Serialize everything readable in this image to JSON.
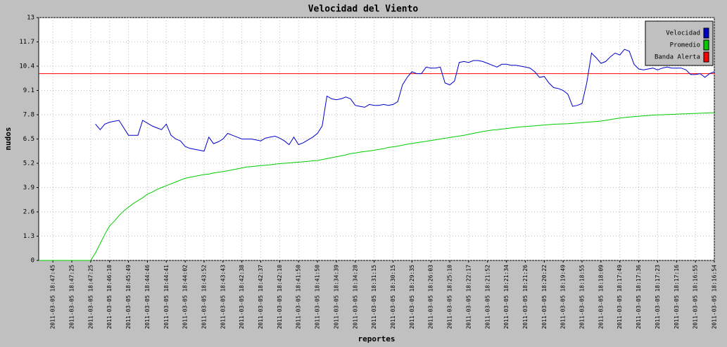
{
  "chart_data": {
    "type": "line",
    "title": "Velocidad del Viento",
    "xlabel": "reportes",
    "ylabel": "nudos",
    "categories": [
      null,
      null,
      null,
      "2011-03-05 18:47:45",
      null,
      null,
      null,
      "2011-03-05 18:47:25",
      null,
      null,
      null,
      "2011-03-05 18:47:25",
      null,
      null,
      null,
      "2011-03-05 18:46:10",
      null,
      null,
      null,
      "2011-03-05 18:45:49",
      null,
      null,
      null,
      "2011-03-05 18:44:46",
      null,
      null,
      null,
      "2011-03-05 18:44:41",
      null,
      null,
      null,
      "2011-03-05 18:44:02",
      null,
      null,
      null,
      "2011-03-05 18:43:52",
      null,
      null,
      null,
      "2011-03-05 18:43:43",
      null,
      null,
      null,
      "2011-03-05 18:42:38",
      null,
      null,
      null,
      "2011-03-05 18:42:37",
      null,
      null,
      null,
      "2011-03-05 18:42:10",
      null,
      null,
      null,
      "2011-03-05 18:41:50",
      null,
      null,
      null,
      "2011-03-05 18:41:50",
      null,
      null,
      null,
      "2011-03-05 18:34:39",
      null,
      null,
      null,
      "2011-03-05 18:34:28",
      null,
      null,
      null,
      "2011-03-05 18:31:15",
      null,
      null,
      null,
      "2011-03-05 18:30:15",
      null,
      null,
      null,
      "2011-03-05 18:29:35",
      null,
      null,
      null,
      "2011-03-05 18:26:03",
      null,
      null,
      null,
      "2011-03-05 18:25:10",
      null,
      null,
      null,
      "2011-03-05 18:22:17",
      null,
      null,
      null,
      "2011-03-05 18:21:52",
      null,
      null,
      null,
      "2011-03-05 18:21:34",
      null,
      null,
      null,
      "2011-03-05 18:21:26",
      null,
      null,
      null,
      "2011-03-05 18:20:22",
      null,
      null,
      null,
      "2011-03-05 18:19:49",
      null,
      null,
      null,
      "2011-03-05 18:18:55",
      null,
      null,
      null,
      "2011-03-05 18:18:09",
      null,
      null,
      null,
      "2011-03-05 18:17:49",
      null,
      null,
      null,
      "2011-03-05 18:17:36",
      null,
      null,
      null,
      "2011-03-05 18:17:23",
      null,
      null,
      null,
      "2011-03-05 18:17:16",
      null,
      null,
      null,
      "2011-03-05 18:16:55",
      null,
      null,
      null,
      "2011-03-05 18:16:54"
    ],
    "series": [
      {
        "name": "Velocidad",
        "color": "#0000cc",
        "values": [
          null,
          null,
          null,
          null,
          null,
          null,
          null,
          null,
          null,
          null,
          null,
          null,
          7.3,
          7.0,
          7.3,
          7.4,
          7.45,
          7.5,
          7.1,
          6.7,
          6.7,
          6.7,
          7.5,
          7.35,
          7.2,
          7.1,
          7.0,
          7.3,
          6.7,
          6.5,
          6.4,
          6.1,
          6.0,
          5.95,
          5.9,
          5.85,
          6.6,
          6.25,
          6.35,
          6.5,
          6.8,
          6.7,
          6.6,
          6.5,
          6.5,
          6.5,
          6.45,
          6.4,
          6.55,
          6.6,
          6.65,
          6.55,
          6.4,
          6.2,
          6.6,
          6.2,
          6.3,
          6.45,
          6.6,
          6.8,
          7.2,
          8.8,
          8.65,
          8.6,
          8.65,
          8.75,
          8.65,
          8.3,
          8.25,
          8.2,
          8.35,
          8.3,
          8.3,
          8.35,
          8.3,
          8.35,
          8.5,
          9.4,
          9.8,
          10.1,
          10.0,
          10.0,
          10.35,
          10.3,
          10.3,
          10.35,
          9.5,
          9.4,
          9.6,
          10.6,
          10.65,
          10.6,
          10.7,
          10.7,
          10.65,
          10.55,
          10.45,
          10.35,
          10.5,
          10.5,
          10.45,
          10.45,
          10.4,
          10.35,
          10.3,
          10.1,
          9.8,
          9.85,
          9.5,
          9.25,
          9.2,
          9.1,
          8.9,
          8.25,
          8.3,
          8.4,
          9.5,
          11.1,
          10.85,
          10.55,
          10.65,
          10.9,
          11.1,
          11.0,
          11.3,
          11.2,
          10.5,
          10.25,
          10.2,
          10.25,
          10.3,
          10.2,
          10.3,
          10.35,
          10.3,
          10.3,
          10.3,
          10.2,
          9.95,
          9.95,
          10.0,
          9.8,
          10.0,
          10.1
        ]
      },
      {
        "name": "Promedio",
        "color": "#00cc00",
        "values": [
          0,
          0,
          0,
          0,
          0,
          0,
          0,
          0,
          0,
          0,
          0,
          0,
          0.4,
          0.9,
          1.4,
          1.85,
          2.1,
          2.4,
          2.65,
          2.85,
          3.05,
          3.2,
          3.35,
          3.55,
          3.65,
          3.8,
          3.9,
          4.0,
          4.1,
          4.2,
          4.3,
          4.4,
          4.45,
          4.5,
          4.55,
          4.6,
          4.62,
          4.68,
          4.72,
          4.76,
          4.8,
          4.85,
          4.9,
          4.95,
          5.0,
          5.02,
          5.05,
          5.08,
          5.1,
          5.12,
          5.15,
          5.18,
          5.2,
          5.22,
          5.24,
          5.26,
          5.28,
          5.3,
          5.33,
          5.35,
          5.4,
          5.45,
          5.5,
          5.55,
          5.6,
          5.65,
          5.72,
          5.75,
          5.8,
          5.83,
          5.86,
          5.9,
          5.94,
          5.98,
          6.05,
          6.08,
          6.12,
          6.17,
          6.22,
          6.26,
          6.3,
          6.34,
          6.38,
          6.42,
          6.46,
          6.5,
          6.54,
          6.58,
          6.62,
          6.66,
          6.7,
          6.75,
          6.8,
          6.85,
          6.9,
          6.94,
          6.98,
          7.0,
          7.03,
          7.06,
          7.09,
          7.12,
          7.15,
          7.17,
          7.19,
          7.21,
          7.23,
          7.25,
          7.27,
          7.29,
          7.3,
          7.31,
          7.32,
          7.34,
          7.36,
          7.38,
          7.4,
          7.42,
          7.44,
          7.46,
          7.5,
          7.54,
          7.58,
          7.62,
          7.65,
          7.68,
          7.7,
          7.72,
          7.74,
          7.76,
          7.78,
          7.79,
          7.8,
          7.81,
          7.82,
          7.83,
          7.84,
          7.85,
          7.86,
          7.87,
          7.88,
          7.89,
          7.9,
          7.9
        ]
      }
    ],
    "alert": {
      "name": "Banda Alerta",
      "color": "#ff0000",
      "value": 10
    },
    "ylim": [
      0,
      13
    ],
    "yticks": [
      0,
      1.3,
      2.6,
      3.9,
      5.2,
      6.5,
      7.8,
      9.1,
      10.4,
      11.7,
      13
    ],
    "grid": true,
    "legend": "top-right"
  }
}
